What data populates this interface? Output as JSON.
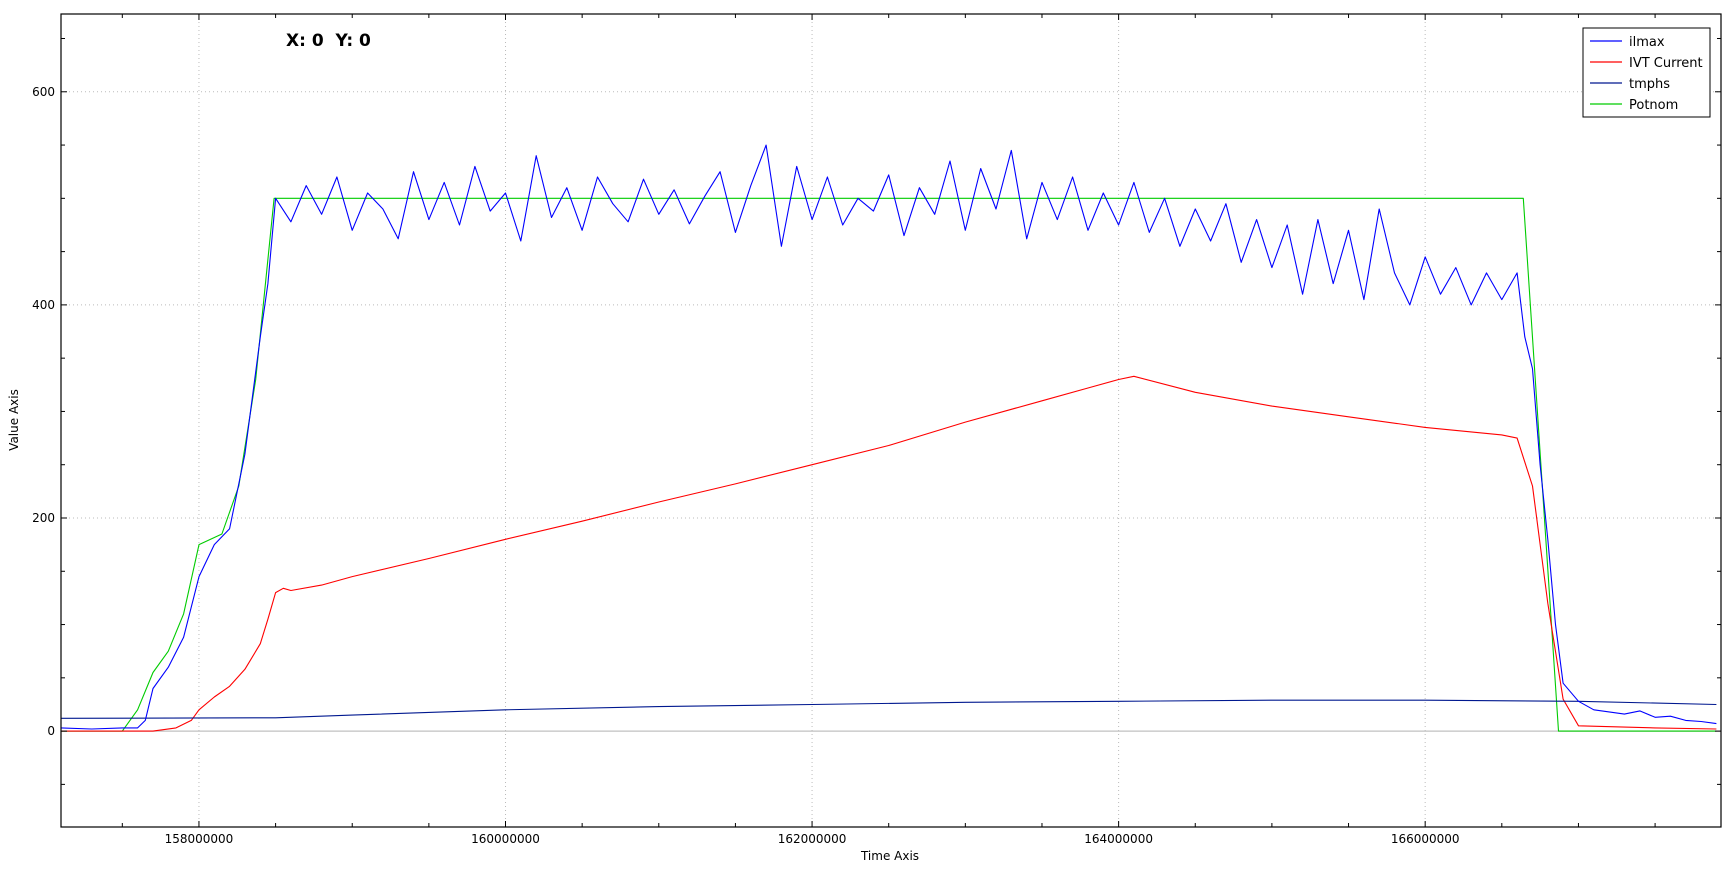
{
  "coordinate_readout": "X: 0  Y: 0",
  "chart_data": {
    "type": "line",
    "title": "",
    "xlabel": "Time Axis",
    "ylabel": "Value Axis",
    "xlim": [
      157100000,
      167930000
    ],
    "ylim": [
      -90,
      673
    ],
    "x_ticks": [
      158000000,
      160000000,
      162000000,
      164000000,
      166000000
    ],
    "x_tick_labels": [
      "158000000",
      "160000000",
      "162000000",
      "164000000",
      "166000000"
    ],
    "y_ticks": [
      0,
      200,
      400,
      600
    ],
    "y_tick_labels": [
      "0",
      "200",
      "400",
      "600"
    ],
    "grid": true,
    "legend_position": "top-right",
    "series": [
      {
        "name": "ilmax",
        "color": "#0000ff",
        "points": [
          [
            157100000,
            3
          ],
          [
            157300000,
            2
          ],
          [
            157500000,
            3
          ],
          [
            157600000,
            3
          ],
          [
            157650000,
            10
          ],
          [
            157700000,
            40
          ],
          [
            157800000,
            60
          ],
          [
            157900000,
            88
          ],
          [
            158000000,
            145
          ],
          [
            158100000,
            175
          ],
          [
            158200000,
            190
          ],
          [
            158300000,
            260
          ],
          [
            158400000,
            370
          ],
          [
            158450000,
            420
          ],
          [
            158500000,
            500
          ],
          [
            158600000,
            478
          ],
          [
            158700000,
            512
          ],
          [
            158800000,
            485
          ],
          [
            158900000,
            520
          ],
          [
            159000000,
            470
          ],
          [
            159100000,
            505
          ],
          [
            159200000,
            490
          ],
          [
            159300000,
            462
          ],
          [
            159400000,
            525
          ],
          [
            159500000,
            480
          ],
          [
            159600000,
            515
          ],
          [
            159700000,
            475
          ],
          [
            159800000,
            530
          ],
          [
            159900000,
            488
          ],
          [
            160000000,
            505
          ],
          [
            160100000,
            460
          ],
          [
            160200000,
            540
          ],
          [
            160300000,
            482
          ],
          [
            160400000,
            510
          ],
          [
            160500000,
            470
          ],
          [
            160600000,
            520
          ],
          [
            160700000,
            495
          ],
          [
            160800000,
            478
          ],
          [
            160900000,
            518
          ],
          [
            161000000,
            485
          ],
          [
            161100000,
            508
          ],
          [
            161200000,
            476
          ],
          [
            161300000,
            502
          ],
          [
            161400000,
            525
          ],
          [
            161500000,
            468
          ],
          [
            161600000,
            512
          ],
          [
            161700000,
            550
          ],
          [
            161800000,
            455
          ],
          [
            161900000,
            530
          ],
          [
            162000000,
            480
          ],
          [
            162100000,
            520
          ],
          [
            162200000,
            475
          ],
          [
            162300000,
            500
          ],
          [
            162400000,
            488
          ],
          [
            162500000,
            522
          ],
          [
            162600000,
            465
          ],
          [
            162700000,
            510
          ],
          [
            162800000,
            485
          ],
          [
            162900000,
            535
          ],
          [
            163000000,
            470
          ],
          [
            163100000,
            528
          ],
          [
            163200000,
            490
          ],
          [
            163300000,
            545
          ],
          [
            163400000,
            462
          ],
          [
            163500000,
            515
          ],
          [
            163600000,
            480
          ],
          [
            163700000,
            520
          ],
          [
            163800000,
            470
          ],
          [
            163900000,
            505
          ],
          [
            164000000,
            475
          ],
          [
            164100000,
            515
          ],
          [
            164200000,
            468
          ],
          [
            164300000,
            500
          ],
          [
            164400000,
            455
          ],
          [
            164500000,
            490
          ],
          [
            164600000,
            460
          ],
          [
            164700000,
            495
          ],
          [
            164800000,
            440
          ],
          [
            164900000,
            480
          ],
          [
            165000000,
            435
          ],
          [
            165100000,
            475
          ],
          [
            165200000,
            410
          ],
          [
            165300000,
            480
          ],
          [
            165400000,
            420
          ],
          [
            165500000,
            470
          ],
          [
            165600000,
            405
          ],
          [
            165700000,
            490
          ],
          [
            165800000,
            430
          ],
          [
            165900000,
            400
          ],
          [
            166000000,
            445
          ],
          [
            166100000,
            410
          ],
          [
            166200000,
            435
          ],
          [
            166300000,
            400
          ],
          [
            166400000,
            430
          ],
          [
            166500000,
            405
          ],
          [
            166600000,
            430
          ],
          [
            166650000,
            370
          ],
          [
            166700000,
            340
          ],
          [
            166750000,
            250
          ],
          [
            166800000,
            180
          ],
          [
            166850000,
            100
          ],
          [
            166900000,
            45
          ],
          [
            167000000,
            28
          ],
          [
            167100000,
            20
          ],
          [
            167200000,
            18
          ],
          [
            167300000,
            16
          ],
          [
            167400000,
            19
          ],
          [
            167500000,
            13
          ],
          [
            167600000,
            14
          ],
          [
            167700000,
            10
          ],
          [
            167800000,
            9
          ],
          [
            167900000,
            7
          ]
        ]
      },
      {
        "name": "IVT Current",
        "color": "#ff0000",
        "points": [
          [
            157100000,
            0
          ],
          [
            157700000,
            0
          ],
          [
            157850000,
            3
          ],
          [
            157950000,
            10
          ],
          [
            158000000,
            20
          ],
          [
            158100000,
            32
          ],
          [
            158200000,
            42
          ],
          [
            158300000,
            58
          ],
          [
            158400000,
            82
          ],
          [
            158450000,
            105
          ],
          [
            158500000,
            130
          ],
          [
            158550000,
            134
          ],
          [
            158600000,
            132
          ],
          [
            158800000,
            137
          ],
          [
            159000000,
            145
          ],
          [
            159500000,
            162
          ],
          [
            160000000,
            180
          ],
          [
            160500000,
            197
          ],
          [
            161000000,
            215
          ],
          [
            161500000,
            232
          ],
          [
            162000000,
            250
          ],
          [
            162500000,
            268
          ],
          [
            163000000,
            290
          ],
          [
            163500000,
            310
          ],
          [
            163800000,
            322
          ],
          [
            164000000,
            330
          ],
          [
            164100000,
            333
          ],
          [
            164500000,
            318
          ],
          [
            165000000,
            305
          ],
          [
            165500000,
            295
          ],
          [
            166000000,
            285
          ],
          [
            166500000,
            278
          ],
          [
            166600000,
            275
          ],
          [
            166700000,
            230
          ],
          [
            166800000,
            120
          ],
          [
            166900000,
            30
          ],
          [
            167000000,
            5
          ],
          [
            167500000,
            3
          ],
          [
            167900000,
            2
          ]
        ]
      },
      {
        "name": "tmphs",
        "color": "#00188f",
        "points": [
          [
            157100000,
            12
          ],
          [
            158500000,
            12.5
          ],
          [
            159000000,
            15
          ],
          [
            160000000,
            20
          ],
          [
            161000000,
            23
          ],
          [
            162000000,
            25
          ],
          [
            163000000,
            27
          ],
          [
            164000000,
            28
          ],
          [
            165000000,
            29
          ],
          [
            166000000,
            29
          ],
          [
            167000000,
            28
          ],
          [
            167900000,
            25
          ]
        ]
      },
      {
        "name": "Potnom",
        "color": "#00cc00",
        "points": [
          [
            157100000,
            0
          ],
          [
            157500000,
            0
          ],
          [
            157600000,
            20
          ],
          [
            157700000,
            55
          ],
          [
            157800000,
            75
          ],
          [
            157900000,
            110
          ],
          [
            158000000,
            175
          ],
          [
            158150000,
            185
          ],
          [
            158260000,
            230
          ],
          [
            158370000,
            330
          ],
          [
            158490000,
            500
          ],
          [
            166640000,
            500
          ],
          [
            166870000,
            0
          ],
          [
            167900000,
            0
          ]
        ]
      }
    ]
  }
}
